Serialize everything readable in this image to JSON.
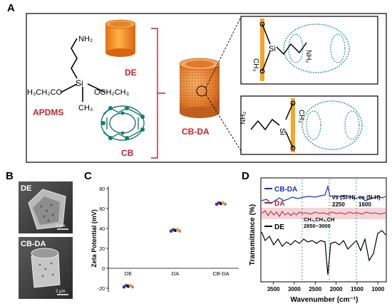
{
  "panel_a": {
    "letter": "A",
    "labels": {
      "de": "DE",
      "apdms": "APDMS",
      "cb": "CB",
      "cbda": "CB-DA"
    },
    "chem": {
      "nh2": "NH₂",
      "si": "Si",
      "ethoxy_left": "H₃CH₂CO",
      "ethoxy_right": "OCH₂CH₃",
      "ch3": "CH₃",
      "o": "O"
    }
  },
  "panel_b": {
    "letter": "B",
    "top_label": "DE",
    "bottom_label": "CB-DA",
    "scale_bar": "2 μm"
  },
  "panel_c": {
    "letter": "C",
    "ylabel": "Zeta Potential (mV)",
    "yticks": [
      "80",
      "60",
      "40",
      "20",
      "0",
      "-20"
    ],
    "categories": [
      "DE",
      "DA",
      "CB-DA"
    ]
  },
  "panel_d": {
    "letter": "D",
    "ylabel": "Transmittance (%)",
    "xlabel": "Wavenumber (cm⁻¹)",
    "xticks": [
      "3500",
      "3000",
      "2500",
      "2000",
      "1500",
      "1000"
    ],
    "legend": {
      "cbda": "CB-DA",
      "da": "DA",
      "de": "DE"
    },
    "annotations": {
      "sih_1": "νs (Si-H)",
      "sih_2": "2250",
      "nh_1": "νs (N-H)",
      "nh_2": "1600",
      "ch_1": "CH₃,CH₂,CH",
      "ch_2": "2850~3000"
    }
  },
  "chart_data": [
    {
      "type": "scatter",
      "ylabel": "Zeta Potential (mV)",
      "categories": [
        "DE",
        "DA",
        "CB-DA"
      ],
      "ylim": [
        -20,
        80
      ],
      "values": [
        -18,
        38,
        65
      ]
    },
    {
      "type": "line",
      "xlabel": "Wavenumber (cm⁻¹)",
      "ylabel": "Transmittance (%)",
      "xlim": [
        3800,
        800
      ],
      "series": [
        {
          "name": "CB-DA",
          "color": "#1d2bd4"
        },
        {
          "name": "DA",
          "color": "#b0262a"
        },
        {
          "name": "DE",
          "color": "#000000"
        }
      ]
    }
  ],
  "colors": {
    "red_label": "#c8202b",
    "cb_green": "#1a7a72",
    "de_orange": "#f08a1c"
  }
}
